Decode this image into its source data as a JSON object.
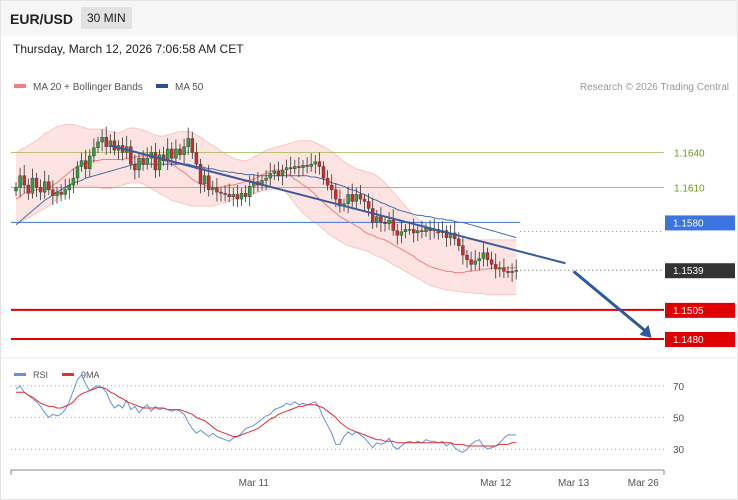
{
  "header": {
    "symbol": "EUR/USD",
    "timeframe": "30 MIN",
    "datetime": "Thursday, March 12, 2026 7:06:58 AM CET"
  },
  "chart_data": [
    {
      "type": "candlestick",
      "legend": [
        {
          "name": "MA 20 + Bollinger Bands",
          "color": "#f08080"
        },
        {
          "name": "MA 50",
          "color": "#2b4f8a"
        }
      ],
      "credit": "Research © 2026 Trading Central",
      "ylim": [
        1.1462,
        1.1685
      ],
      "levels": [
        {
          "value": 1.164,
          "label": "1.1640",
          "color": "#9ab554",
          "kind": "resistance-thin"
        },
        {
          "value": 1.161,
          "label": "1.1610",
          "color": "#9ab554",
          "kind": "resistance-thin"
        },
        {
          "value": 1.158,
          "label": "1.1580",
          "color": "#3b73e0",
          "kind": "pivot"
        },
        {
          "value": 1.1539,
          "label": "1.1539",
          "color": "#333333",
          "kind": "last-price"
        },
        {
          "value": 1.1505,
          "label": "1.1505",
          "color": "#e00000",
          "kind": "support"
        },
        {
          "value": 1.148,
          "label": "1.1480",
          "color": "#e00000",
          "kind": "support"
        }
      ],
      "trendline": {
        "from": [
          23,
          1.1646
        ],
        "to": [
          134,
          1.1545
        ]
      },
      "projection_arrow": {
        "from": [
          136,
          1.1538
        ],
        "to": [
          155,
          1.1481
        ]
      },
      "x_ticks": [
        {
          "label": "Mar 11",
          "index": 58
        },
        {
          "label": "Mar 12",
          "index": 117
        },
        {
          "label": "Mar 13",
          "index": 136
        },
        {
          "label": "Mar 26",
          "index": 153
        }
      ],
      "closes": [
        1.161,
        1.162,
        1.1612,
        1.1605,
        1.1618,
        1.161,
        1.1606,
        1.1615,
        1.1608,
        1.1603,
        1.1606,
        1.1604,
        1.1608,
        1.1612,
        1.1618,
        1.1628,
        1.1633,
        1.1626,
        1.1637,
        1.1644,
        1.1649,
        1.1653,
        1.1645,
        1.165,
        1.1642,
        1.1646,
        1.164,
        1.1645,
        1.163,
        1.1625,
        1.1635,
        1.163,
        1.1635,
        1.164,
        1.1625,
        1.1638,
        1.1633,
        1.1643,
        1.1635,
        1.1643,
        1.1638,
        1.1645,
        1.1652,
        1.164,
        1.163,
        1.1613,
        1.162,
        1.1608,
        1.161,
        1.1606,
        1.1605,
        1.1604,
        1.1602,
        1.1604,
        1.16,
        1.1605,
        1.1602,
        1.1611,
        1.1615,
        1.1612,
        1.1616,
        1.1618,
        1.1622,
        1.1624,
        1.162,
        1.1625,
        1.1627,
        1.1626,
        1.1628,
        1.1627,
        1.1629,
        1.1628,
        1.163,
        1.1632,
        1.1628,
        1.1618,
        1.1612,
        1.1608,
        1.16,
        1.1594,
        1.1596,
        1.1604,
        1.1598,
        1.1604,
        1.16,
        1.1598,
        1.1592,
        1.158,
        1.1585,
        1.158,
        1.1579,
        1.1582,
        1.1573,
        1.1569,
        1.1572,
        1.1574,
        1.1574,
        1.1571,
        1.1573,
        1.1572,
        1.1575,
        1.1573,
        1.1574,
        1.1571,
        1.1573,
        1.1567,
        1.1571,
        1.1566,
        1.156,
        1.1552,
        1.1548,
        1.1544,
        1.1547,
        1.1549,
        1.1554,
        1.1548,
        1.1544,
        1.154,
        1.1541,
        1.1538,
        1.1537,
        1.1538,
        1.1539
      ],
      "ma20": [
        1.16,
        1.1602,
        1.1605,
        1.1606,
        1.1607,
        1.1608,
        1.1608,
        1.1609,
        1.161,
        1.1612,
        1.1614,
        1.1617,
        1.162,
        1.1623,
        1.1626,
        1.1628,
        1.163,
        1.1631,
        1.1632,
        1.1633,
        1.1633,
        1.1634,
        1.1634,
        1.1634,
        1.1634,
        1.1634,
        1.1634,
        1.1635,
        1.1635,
        1.1636,
        1.1637,
        1.1637,
        1.1637,
        1.1636,
        1.1635,
        1.1634,
        1.1633,
        1.1632,
        1.163,
        1.1628,
        1.1625,
        1.1623,
        1.162,
        1.1617,
        1.1615,
        1.1613,
        1.1612,
        1.1611,
        1.161,
        1.161,
        1.161,
        1.1611,
        1.1612,
        1.1612,
        1.1613,
        1.1614,
        1.1615,
        1.1616,
        1.1617,
        1.1619,
        1.1621,
        1.1622,
        1.1624,
        1.1625,
        1.1625,
        1.1624,
        1.1622,
        1.162,
        1.1617,
        1.1615,
        1.1612,
        1.161,
        1.1607,
        1.1604,
        1.16,
        1.1597,
        1.1594,
        1.1591,
        1.1588,
        1.1585,
        1.1583,
        1.1581,
        1.1579,
        1.1577,
        1.1575,
        1.1572,
        1.157,
        1.1569,
        1.1567,
        1.1566,
        1.1565,
        1.1563,
        1.1561,
        1.1559,
        1.1557,
        1.1555,
        1.1553,
        1.1551,
        1.1548,
        1.1546,
        1.1544,
        1.1542,
        1.1541,
        1.154,
        1.1539,
        1.1538,
        1.1538,
        1.1537,
        1.1537,
        1.1537,
        1.1538,
        1.1538,
        1.1539,
        1.1539,
        1.154,
        1.154,
        1.1541,
        1.1541,
        1.1541,
        1.1541,
        1.1541,
        1.1541,
        1.1541
      ],
      "bb_upper": [
        1.164,
        1.1642,
        1.1644,
        1.1646,
        1.1648,
        1.165,
        1.1653,
        1.1656,
        1.1658,
        1.166,
        1.1662,
        1.1663,
        1.1664,
        1.1664,
        1.1664,
        1.1663,
        1.1662,
        1.1661,
        1.166,
        1.166,
        1.166,
        1.166,
        1.1659,
        1.1658,
        1.1657,
        1.1657,
        1.1658,
        1.166,
        1.1661,
        1.1661,
        1.166,
        1.1659,
        1.1658,
        1.1656,
        1.1655,
        1.1654,
        1.1654,
        1.1655,
        1.1656,
        1.1657,
        1.1658,
        1.1658,
        1.1658,
        1.1657,
        1.1655,
        1.1653,
        1.1651,
        1.1648,
        1.1646,
        1.1644,
        1.1641,
        1.1639,
        1.1637,
        1.1635,
        1.1634,
        1.1633,
        1.1633,
        1.1634,
        1.1636,
        1.1638,
        1.164,
        1.1642,
        1.1643,
        1.1644,
        1.1645,
        1.1646,
        1.1647,
        1.1648,
        1.1649,
        1.165,
        1.165,
        1.165,
        1.165,
        1.1648,
        1.1647,
        1.1645,
        1.1643,
        1.1641,
        1.1638,
        1.1635,
        1.1632,
        1.163,
        1.1628,
        1.1626,
        1.1625,
        1.1624,
        1.1623,
        1.1622,
        1.162,
        1.1617,
        1.1614,
        1.161,
        1.1606,
        1.1602,
        1.1598,
        1.1594,
        1.159,
        1.1586,
        1.1583,
        1.158,
        1.1577,
        1.1574,
        1.1572,
        1.157,
        1.1569,
        1.1568,
        1.1567,
        1.1566,
        1.1565,
        1.1565,
        1.1565,
        1.1565,
        1.1565,
        1.1565,
        1.1565,
        1.1565,
        1.1565,
        1.1565,
        1.1565,
        1.1565,
        1.1565,
        1.1565,
        1.1565
      ],
      "bb_lower": [
        1.1578,
        1.158,
        1.1582,
        1.1584,
        1.1586,
        1.1588,
        1.159,
        1.1592,
        1.1594,
        1.1597,
        1.16,
        1.1603,
        1.1606,
        1.1608,
        1.161,
        1.1611,
        1.1611,
        1.1611,
        1.1611,
        1.1611,
        1.161,
        1.1609,
        1.1609,
        1.1609,
        1.161,
        1.1611,
        1.1612,
        1.1613,
        1.1614,
        1.1614,
        1.1614,
        1.1613,
        1.1611,
        1.1609,
        1.1607,
        1.1605,
        1.1603,
        1.1601,
        1.1599,
        1.1598,
        1.1597,
        1.1596,
        1.1595,
        1.1594,
        1.1594,
        1.1594,
        1.1594,
        1.1594,
        1.1594,
        1.1595,
        1.1596,
        1.1597,
        1.1598,
        1.16,
        1.1601,
        1.1602,
        1.1603,
        1.1604,
        1.1605,
        1.1606,
        1.1607,
        1.1608,
        1.1608,
        1.1609,
        1.1609,
        1.1608,
        1.1605,
        1.1601,
        1.1596,
        1.1592,
        1.1588,
        1.1585,
        1.1582,
        1.158,
        1.1577,
        1.1574,
        1.1571,
        1.1568,
        1.1566,
        1.1564,
        1.1562,
        1.156,
        1.1559,
        1.1558,
        1.1557,
        1.1556,
        1.1555,
        1.1553,
        1.1551,
        1.155,
        1.1548,
        1.1546,
        1.1544,
        1.1542,
        1.154,
        1.1538,
        1.1536,
        1.1534,
        1.1532,
        1.153,
        1.1528,
        1.1526,
        1.1525,
        1.1524,
        1.1523,
        1.1522,
        1.1522,
        1.1521,
        1.1521,
        1.152,
        1.152,
        1.152,
        1.1519,
        1.1519,
        1.1519,
        1.1518,
        1.1518,
        1.1518,
        1.1518,
        1.1518,
        1.1518,
        1.1518,
        1.1518
      ],
      "ma50": [
        1.1578,
        1.1581,
        1.1584,
        1.1587,
        1.159,
        1.1593,
        1.1596,
        1.1599,
        1.1601,
        1.1604,
        1.1606,
        1.1608,
        1.161,
        1.1612,
        1.1614,
        1.1615,
        1.1616,
        1.1618,
        1.1619,
        1.162,
        1.1621,
        1.1622,
        1.1623,
        1.1624,
        1.1625,
        1.1626,
        1.1627,
        1.1628,
        1.1629,
        1.163,
        1.163,
        1.163,
        1.163,
        1.163,
        1.163,
        1.163,
        1.163,
        1.163,
        1.163,
        1.163,
        1.163,
        1.163,
        1.163,
        1.1629,
        1.1628,
        1.1628,
        1.1627,
        1.1626,
        1.1626,
        1.1625,
        1.1624,
        1.1624,
        1.1623,
        1.1623,
        1.1622,
        1.1622,
        1.1621,
        1.1621,
        1.1621,
        1.162,
        1.162,
        1.162,
        1.162,
        1.162,
        1.162,
        1.162,
        1.162,
        1.162,
        1.162,
        1.162,
        1.162,
        1.162,
        1.1619,
        1.1619,
        1.1618,
        1.1617,
        1.1616,
        1.1614,
        1.1613,
        1.1612,
        1.1611,
        1.1609,
        1.1608,
        1.1607,
        1.1605,
        1.1604,
        1.1602,
        1.16,
        1.1599,
        1.1597,
        1.1596,
        1.1594,
        1.1593,
        1.1591,
        1.159,
        1.1589,
        1.1588,
        1.1587,
        1.1586,
        1.1586,
        1.1585,
        1.1585,
        1.1584,
        1.1583,
        1.1583,
        1.1582,
        1.1582,
        1.1581,
        1.158,
        1.158,
        1.1579,
        1.1578,
        1.1577,
        1.1576,
        1.1575,
        1.1574,
        1.1573,
        1.1572,
        1.1571,
        1.157,
        1.1569,
        1.1568,
        1.1567
      ]
    },
    {
      "type": "line",
      "legend": [
        {
          "name": "RSI",
          "color": "#6a8fdc"
        },
        {
          "name": "9MA",
          "color": "#e03030"
        }
      ],
      "ylim": [
        20,
        80
      ],
      "y_ticks": [
        70,
        50,
        30
      ],
      "rsi": [
        68,
        70,
        66,
        64,
        62,
        60,
        57,
        53,
        50,
        52,
        51,
        52,
        55,
        60,
        67,
        74,
        77,
        71,
        67,
        69,
        70,
        69,
        66,
        60,
        56,
        58,
        56,
        61,
        55,
        57,
        53,
        56,
        58,
        54,
        57,
        55,
        56,
        55,
        54,
        55,
        54,
        52,
        47,
        43,
        40,
        42,
        40,
        38,
        40,
        38,
        37,
        36,
        35,
        37,
        38,
        40,
        43,
        44,
        45,
        47,
        49,
        51,
        52,
        55,
        56,
        57,
        59,
        58,
        60,
        58,
        59,
        58,
        59,
        60,
        56,
        50,
        45,
        40,
        33,
        33,
        38,
        41,
        39,
        41,
        39,
        37,
        34,
        31,
        34,
        33,
        34,
        37,
        32,
        30,
        32,
        34,
        35,
        34,
        35,
        34,
        36,
        35,
        35,
        34,
        35,
        32,
        34,
        31,
        29,
        28,
        30,
        33,
        35,
        36,
        32,
        30,
        31,
        32,
        34,
        37,
        39,
        39,
        39
      ],
      "ma9": [
        66,
        66,
        66,
        64,
        63,
        61,
        59,
        58,
        57,
        57,
        56,
        56,
        57,
        58,
        60,
        63,
        65,
        66,
        67,
        68,
        69,
        69,
        68,
        66,
        65,
        63,
        62,
        60,
        59,
        58,
        57,
        56,
        56,
        56,
        56,
        56,
        56,
        55,
        55,
        55,
        55,
        54,
        53,
        52,
        50,
        49,
        48,
        46,
        44,
        42,
        41,
        40,
        39,
        38,
        38,
        39,
        40,
        41,
        42,
        43,
        45,
        47,
        49,
        50,
        52,
        53,
        54,
        55,
        56,
        57,
        57,
        58,
        58,
        58,
        57,
        56,
        54,
        52,
        50,
        47,
        45,
        43,
        42,
        41,
        40,
        39,
        38,
        37,
        36,
        36,
        35,
        35,
        35,
        34,
        34,
        34,
        34,
        34,
        34,
        34,
        34,
        34,
        34,
        34,
        34,
        34,
        34,
        33,
        33,
        33,
        32,
        32,
        32,
        32,
        32,
        32,
        32,
        32,
        33,
        33,
        33,
        34,
        34
      ],
      "x_ticks": [
        {
          "label": "Mar 11",
          "index": 58
        },
        {
          "label": "Mar 12",
          "index": 117
        },
        {
          "label": "Mar 13",
          "index": 136
        },
        {
          "label": "Mar 26",
          "index": 153
        }
      ]
    }
  ]
}
